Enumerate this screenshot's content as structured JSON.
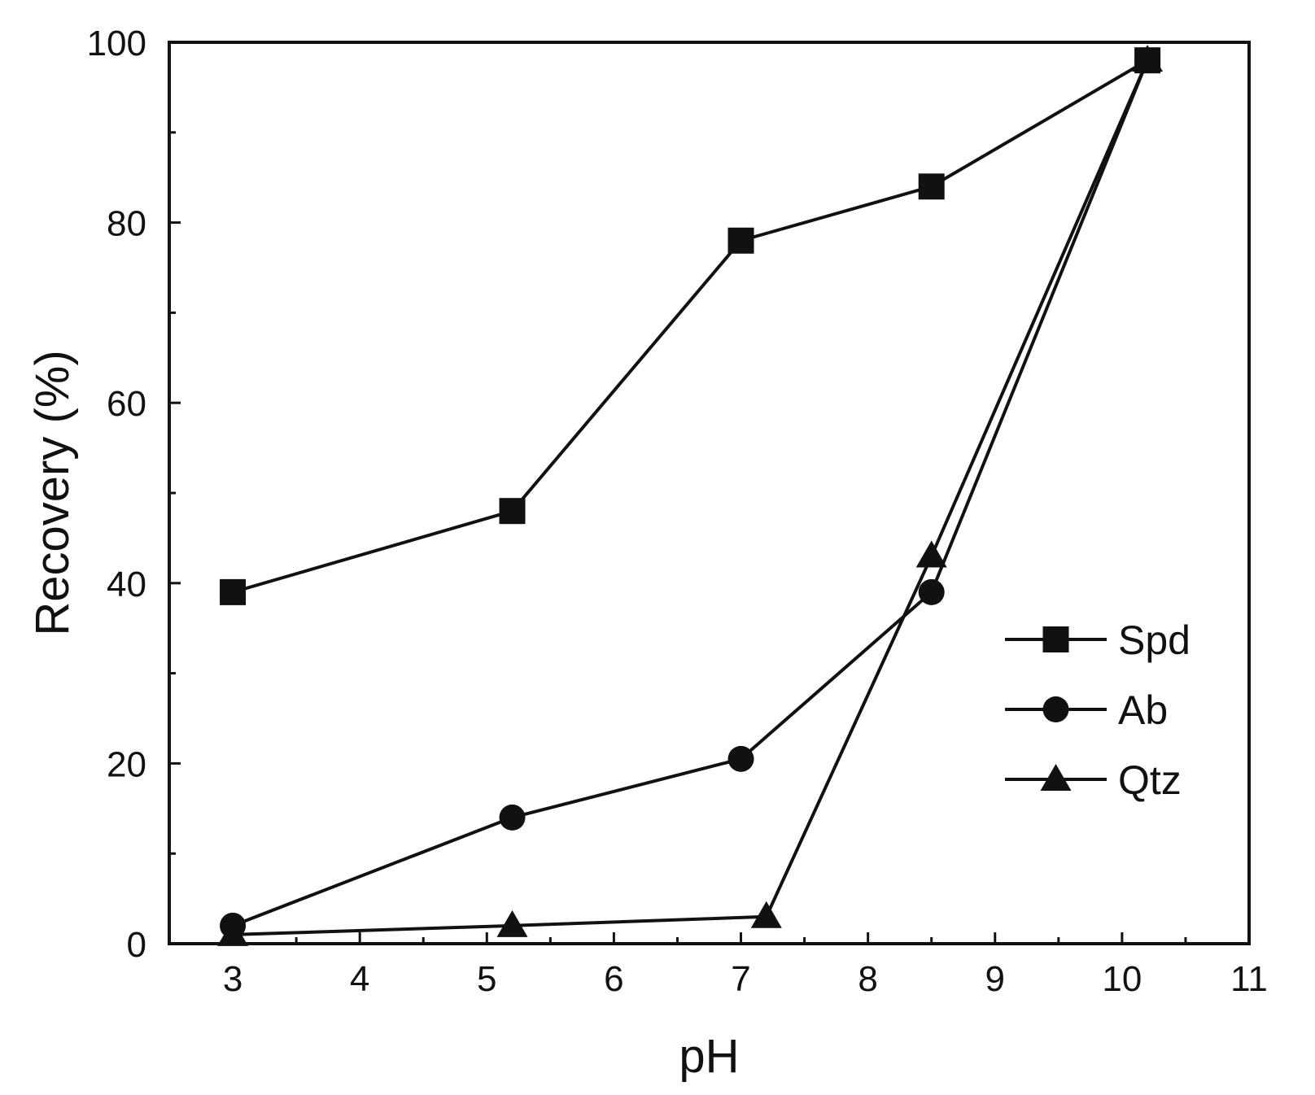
{
  "chart_data": {
    "type": "line",
    "xlabel": "pH",
    "ylabel": "Recovery (%)",
    "xlim": [
      2.5,
      11
    ],
    "ylim": [
      0,
      100
    ],
    "xticks": [
      3,
      4,
      5,
      6,
      7,
      8,
      9,
      10,
      11
    ],
    "yticks": [
      0,
      20,
      40,
      60,
      80,
      100
    ],
    "grid": false,
    "legend_position": "right",
    "series": [
      {
        "name": "Spd",
        "marker": "square",
        "x": [
          3,
          5.2,
          7,
          8.5,
          10.2
        ],
        "y": [
          39,
          48,
          78,
          84,
          98
        ]
      },
      {
        "name": "Ab",
        "marker": "circle",
        "x": [
          3,
          5.2,
          7,
          8.5,
          10.2
        ],
        "y": [
          2,
          14,
          20.5,
          39,
          98
        ]
      },
      {
        "name": "Qtz",
        "marker": "triangle",
        "x": [
          3,
          5.2,
          7.2,
          8.5,
          10.2
        ],
        "y": [
          1,
          2,
          3,
          43,
          98
        ]
      }
    ]
  }
}
